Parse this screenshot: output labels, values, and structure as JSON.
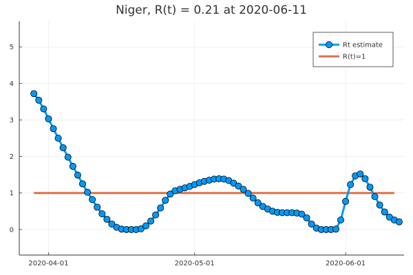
{
  "chart_data": {
    "type": "line",
    "title": "Niger, R(t) = 0.21 at 2020-06-11",
    "xlabel": "",
    "ylabel": "",
    "x_start": "2020-03-29",
    "x_end": "2020-06-11",
    "xlim": [
      "2020-03-26",
      "2020-06-13"
    ],
    "ylim": [
      -0.7,
      5.7
    ],
    "grid": true,
    "legend_position": "top-right",
    "x_ticks": [
      "2020-04-01",
      "2020-05-01",
      "2020-06-01"
    ],
    "y_ticks": [
      0,
      1,
      2,
      3,
      4,
      5
    ],
    "series": [
      {
        "name": "Rt estimate",
        "color": "#009af9",
        "marker": "circle",
        "values": [
          3.72,
          3.54,
          3.3,
          3.03,
          2.76,
          2.5,
          2.24,
          1.98,
          1.73,
          1.49,
          1.25,
          1.02,
          0.82,
          0.61,
          0.43,
          0.28,
          0.15,
          0.06,
          0.01,
          0.0,
          0.0,
          0.0,
          0.02,
          0.1,
          0.23,
          0.4,
          0.59,
          0.8,
          0.97,
          1.06,
          1.1,
          1.14,
          1.18,
          1.23,
          1.28,
          1.32,
          1.35,
          1.38,
          1.39,
          1.38,
          1.34,
          1.27,
          1.19,
          1.1,
          0.99,
          0.86,
          0.73,
          0.63,
          0.56,
          0.5,
          0.47,
          0.46,
          0.46,
          0.46,
          0.45,
          0.42,
          0.32,
          0.15,
          0.04,
          0.0,
          0.0,
          0.0,
          0.01,
          0.26,
          0.77,
          1.23,
          1.47,
          1.52,
          1.39,
          1.16,
          0.9,
          0.67,
          0.48,
          0.34,
          0.26,
          0.21
        ]
      },
      {
        "name": "R(t)=1",
        "color": "#e26f46",
        "values": [
          1,
          1
        ]
      }
    ]
  }
}
